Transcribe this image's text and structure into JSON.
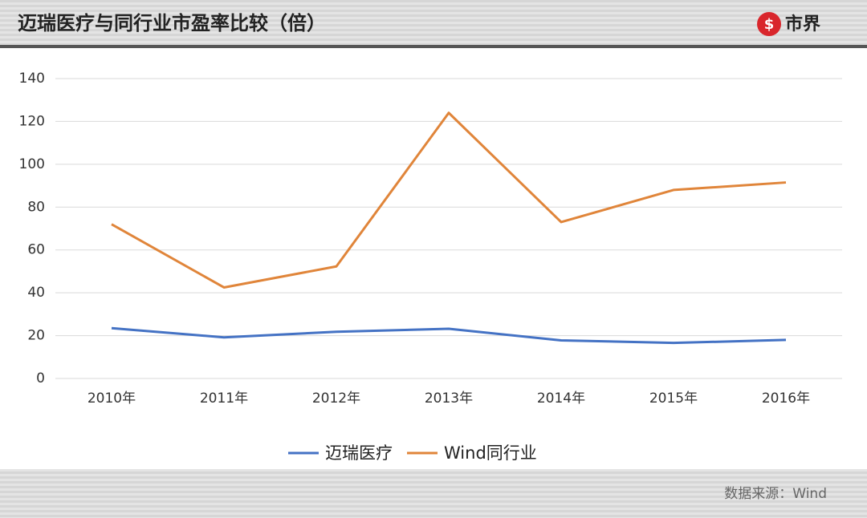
{
  "logo": "市界",
  "source": "数据来源：Wind",
  "chart_data": {
    "type": "line",
    "title": "迈瑞医疗与同行业市盈率比较（倍）",
    "categories": [
      "2010年",
      "2011年",
      "2012年",
      "2013年",
      "2014年",
      "2015年",
      "2016年"
    ],
    "series": [
      {
        "name": "迈瑞医疗",
        "color": "#4472c4",
        "values": [
          23.5,
          19.2,
          21.8,
          23.2,
          17.8,
          16.6,
          18.0
        ]
      },
      {
        "name": "Wind同行业",
        "color": "#e0853a",
        "values": [
          72,
          42.5,
          52.3,
          124,
          73,
          88,
          91.5
        ]
      }
    ],
    "ylim": [
      0,
      140
    ],
    "yticks": [
      0,
      20,
      40,
      60,
      80,
      100,
      120,
      140
    ],
    "grid": true,
    "legend": "bottom"
  }
}
